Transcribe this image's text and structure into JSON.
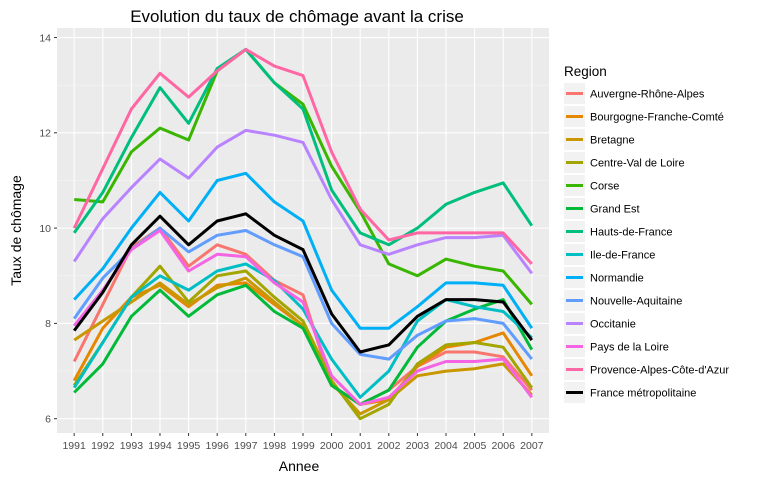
{
  "chart_data": {
    "type": "line",
    "title": "Evolution du taux de chômage avant la crise",
    "xlabel": "Annee",
    "ylabel": "Taux de chômage",
    "xlim": [
      1991,
      2007
    ],
    "ylim": [
      5.7,
      14.2
    ],
    "yticks": [
      6,
      8,
      10,
      12,
      14
    ],
    "x": [
      1991,
      1992,
      1993,
      1994,
      1995,
      1996,
      1997,
      1998,
      1999,
      2000,
      2001,
      2002,
      2003,
      2004,
      2005,
      2006,
      2007
    ],
    "x_labels": [
      "1991",
      "1992",
      "1993",
      "1994",
      "1995",
      "1996",
      "1997",
      "1998",
      "1999",
      "2000",
      "2001",
      "2002",
      "2003",
      "2004",
      "2005",
      "2006",
      "2007"
    ],
    "grid": true,
    "legend_title": "Region",
    "legend_position": "right",
    "series": [
      {
        "name": "Auvergne-Rhône-Alpes",
        "color": "#F8766D",
        "values": [
          7.2,
          8.4,
          9.6,
          10.0,
          9.2,
          9.65,
          9.45,
          8.9,
          8.6,
          6.7,
          6.3,
          6.6,
          7.1,
          7.4,
          7.4,
          7.3,
          6.6
        ]
      },
      {
        "name": "Bourgogne-Franche-Comté",
        "color": "#E58700",
        "values": [
          6.8,
          7.9,
          8.55,
          8.8,
          8.35,
          8.8,
          8.85,
          8.4,
          7.95,
          6.7,
          6.3,
          6.4,
          7.1,
          7.5,
          7.6,
          7.8,
          6.9
        ]
      },
      {
        "name": "Bretagne",
        "color": "#C99800",
        "values": [
          7.65,
          8.05,
          8.45,
          8.85,
          8.4,
          8.75,
          8.95,
          8.45,
          7.95,
          6.75,
          6.1,
          6.4,
          6.9,
          7.0,
          7.05,
          7.15,
          6.5
        ]
      },
      {
        "name": "Centre-Val de Loire",
        "color": "#A3A500",
        "values": [
          6.7,
          7.6,
          8.55,
          9.2,
          8.45,
          9.0,
          9.1,
          8.55,
          8.05,
          6.8,
          6.0,
          6.3,
          7.15,
          7.55,
          7.6,
          7.5,
          6.65
        ]
      },
      {
        "name": "Corse",
        "color": "#39B600",
        "values": [
          10.6,
          10.55,
          11.6,
          12.1,
          11.85,
          13.3,
          13.75,
          13.05,
          12.6,
          11.3,
          10.35,
          9.25,
          9.0,
          9.35,
          9.2,
          9.1,
          8.4
        ]
      },
      {
        "name": "Grand Est",
        "color": "#00BA38",
        "values": [
          6.55,
          7.15,
          8.15,
          8.7,
          8.15,
          8.6,
          8.8,
          8.25,
          7.9,
          6.7,
          6.3,
          6.6,
          7.5,
          8.05,
          8.3,
          8.5,
          7.45
        ]
      },
      {
        "name": "Hauts-de-France",
        "color": "#00BF7D",
        "values": [
          9.9,
          10.75,
          11.9,
          12.95,
          12.2,
          13.35,
          13.75,
          13.05,
          12.5,
          10.8,
          9.9,
          9.65,
          10.0,
          10.5,
          10.75,
          10.95,
          10.05
        ]
      },
      {
        "name": "Ile-de-France",
        "color": "#00BFC4",
        "values": [
          6.65,
          7.6,
          8.55,
          9.0,
          8.7,
          9.1,
          9.25,
          8.9,
          8.3,
          7.25,
          6.45,
          7.0,
          8.05,
          8.5,
          8.35,
          8.25,
          7.7
        ]
      },
      {
        "name": "Normandie",
        "color": "#00B0F6",
        "values": [
          8.5,
          9.15,
          10.0,
          10.75,
          10.15,
          11.0,
          11.15,
          10.55,
          10.15,
          8.7,
          7.9,
          7.9,
          8.35,
          8.85,
          8.85,
          8.8,
          7.9
        ]
      },
      {
        "name": "Nouvelle-Aquitaine",
        "color": "#619CFF",
        "values": [
          8.1,
          8.95,
          9.55,
          10.0,
          9.5,
          9.85,
          9.95,
          9.65,
          9.4,
          8.0,
          7.35,
          7.25,
          7.75,
          8.05,
          8.1,
          8.0,
          7.25
        ]
      },
      {
        "name": "Occitanie",
        "color": "#B983FF",
        "values": [
          9.3,
          10.2,
          10.85,
          11.45,
          11.05,
          11.7,
          12.05,
          11.95,
          11.8,
          10.6,
          9.65,
          9.45,
          9.65,
          9.8,
          9.8,
          9.85,
          9.05
        ]
      },
      {
        "name": "Pays de la Loire",
        "color": "#F564E3",
        "values": [
          7.95,
          8.7,
          9.55,
          9.95,
          9.1,
          9.45,
          9.4,
          8.85,
          8.45,
          6.9,
          6.3,
          6.45,
          7.0,
          7.2,
          7.2,
          7.25,
          6.45
        ]
      },
      {
        "name": "Provence-Alpes-Côte-d'Azur",
        "color": "#FF67A4",
        "values": [
          10.0,
          11.25,
          12.5,
          13.25,
          12.75,
          13.3,
          13.75,
          13.4,
          13.2,
          11.6,
          10.4,
          9.75,
          9.9,
          9.9,
          9.9,
          9.9,
          9.25
        ]
      },
      {
        "name": "France métropolitaine",
        "color": "#000000",
        "values": [
          7.85,
          8.65,
          9.65,
          10.25,
          9.65,
          10.15,
          10.3,
          9.85,
          9.55,
          8.2,
          7.4,
          7.55,
          8.15,
          8.5,
          8.5,
          8.45,
          7.65
        ]
      }
    ]
  }
}
